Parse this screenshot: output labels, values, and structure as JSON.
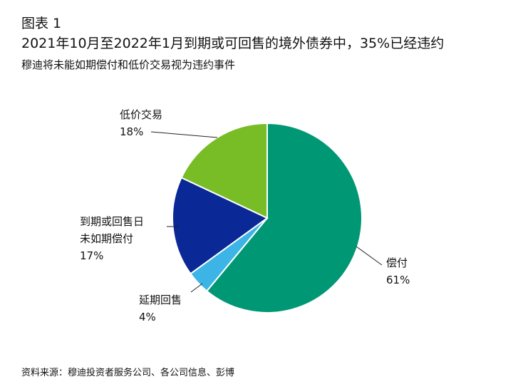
{
  "figure_label": "图表 1",
  "title": "2021年10月至2022年1月到期或可回售的境外债券中，35%已经违约",
  "subtitle": "穆迪将未能如期偿付和低价交易视为违约事件",
  "source": "资料来源：穆迪投资者服务公司、各公司信息、彭博",
  "chart_data": {
    "type": "pie",
    "start": "top, clockwise",
    "slices": [
      {
        "label": "偿付",
        "value": 61,
        "value_label": "61%",
        "color": "#009874"
      },
      {
        "label": "延期回售",
        "value": 4,
        "value_label": "4%",
        "color": "#3cb4e6"
      },
      {
        "label": "到期或回售日\n未如期偿付",
        "value": 17,
        "value_label": "17%",
        "color": "#0a2896"
      },
      {
        "label": "低价交易",
        "value": 18,
        "value_label": "18%",
        "color": "#78bc26"
      }
    ]
  }
}
